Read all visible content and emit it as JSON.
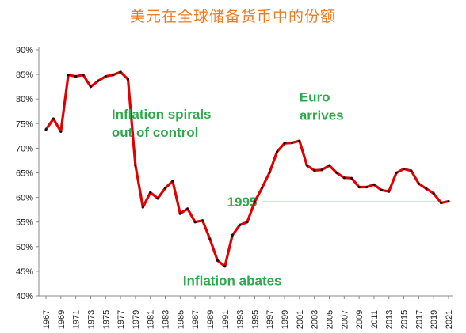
{
  "title": "美元在全球储备货币中的份额",
  "colors": {
    "line": "#e00000",
    "marker": "#111111",
    "annotation": "#2ea84a",
    "ref_line": "#4a9a57",
    "title": "#ee7b22"
  },
  "chart_data": {
    "type": "line",
    "title": "美元在全球储备货币中的份额",
    "xlabel": "",
    "ylabel": "",
    "ylim": [
      40,
      90
    ],
    "grid": false,
    "y_ticks": [
      "40%",
      "45%",
      "50%",
      "55%",
      "60%",
      "65%",
      "70%",
      "75%",
      "80%",
      "85%",
      "90%"
    ],
    "x_ticks": [
      "1967",
      "1969",
      "1971",
      "1973",
      "1975",
      "1977",
      "1979",
      "1981",
      "1983",
      "1985",
      "1987",
      "1989",
      "1991",
      "1993",
      "1995",
      "1997",
      "1999",
      "2001",
      "2003",
      "2005",
      "2007",
      "2009",
      "2011",
      "2013",
      "2015",
      "2017",
      "2019",
      "2021"
    ],
    "x": [
      1967,
      1968,
      1969,
      1970,
      1971,
      1972,
      1973,
      1974,
      1975,
      1976,
      1977,
      1978,
      1979,
      1980,
      1981,
      1982,
      1983,
      1984,
      1985,
      1986,
      1987,
      1988,
      1989,
      1990,
      1991,
      1992,
      1993,
      1994,
      1995,
      1996,
      1997,
      1998,
      1999,
      2000,
      2001,
      2002,
      2003,
      2004,
      2005,
      2006,
      2007,
      2008,
      2009,
      2010,
      2011,
      2012,
      2013,
      2014,
      2015,
      2016,
      2017,
      2018,
      2019,
      2020,
      2021
    ],
    "series": [
      {
        "values": [
          73.8,
          76.0,
          73.4,
          84.9,
          84.6,
          84.9,
          82.5,
          83.7,
          84.6,
          84.9,
          85.5,
          84.0,
          66.5,
          58.0,
          61.0,
          59.8,
          61.9,
          63.3,
          56.7,
          57.7,
          55.0,
          55.3,
          51.5,
          47.2,
          46.0,
          52.3,
          54.4,
          55.0,
          59.1,
          62.0,
          65.1,
          69.3,
          71.0,
          71.1,
          71.5,
          66.5,
          65.5,
          65.6,
          66.5,
          65.0,
          64.0,
          63.9,
          62.1,
          62.1,
          62.6,
          61.5,
          61.2,
          65.0,
          65.8,
          65.4,
          62.8,
          61.8,
          60.8,
          58.9,
          59.2
        ]
      }
    ],
    "reference_line": {
      "label": "1995",
      "y": 59.1,
      "from_x": 1995,
      "to_x": 2021
    },
    "annotations": [
      {
        "text_lines": [
          "Inflation spirals",
          "out of control"
        ],
        "x": 1979,
        "y": 76.0
      },
      {
        "text_lines": [
          "Euro",
          "arrives"
        ],
        "x": 2001,
        "y": 79.5
      },
      {
        "text_lines": [
          "Inflation abates"
        ],
        "x": 1992,
        "y": 42.2
      }
    ]
  }
}
